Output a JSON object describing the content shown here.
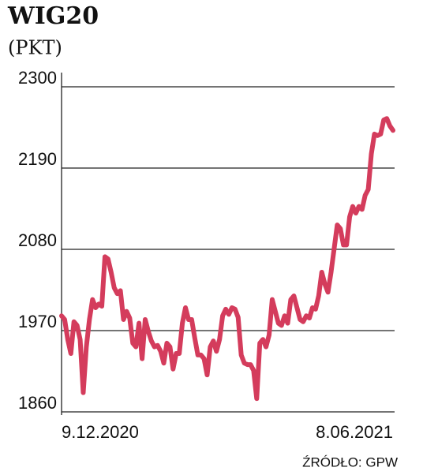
{
  "chart_data": {
    "type": "line",
    "title": "WIG20",
    "subtitle": "(PKT)",
    "source": "ŹRÓDŁO: GPW",
    "categories": [
      "9.12.2020",
      null,
      null,
      null,
      null,
      null,
      null,
      null,
      null,
      null,
      null,
      null,
      null,
      null,
      null,
      null,
      null,
      null,
      null,
      null,
      null,
      null,
      null,
      null,
      null,
      null,
      null,
      null,
      null,
      null,
      null,
      null,
      null,
      null,
      null,
      null,
      null,
      null,
      null,
      null,
      null,
      null,
      null,
      null,
      null,
      null,
      null,
      null,
      null,
      null,
      null,
      null,
      null,
      null,
      null,
      null,
      null,
      null,
      null,
      null,
      null,
      null,
      null,
      null,
      null,
      null,
      null,
      null,
      null,
      null,
      null,
      null,
      null,
      null,
      null,
      null,
      null,
      null,
      null,
      null,
      null,
      null,
      null,
      null,
      null,
      null,
      null,
      null,
      null,
      null,
      null,
      null,
      null,
      null,
      null,
      null,
      null,
      null,
      null,
      null,
      null,
      null,
      null,
      null,
      null,
      null,
      null,
      "8.06.2021"
    ],
    "series": [
      {
        "name": "WIG20",
        "color": "#d43c5c",
        "values": [
          1990,
          1985,
          1958,
          1939,
          1982,
          1977,
          1958,
          1886,
          1948,
          1985,
          2012,
          2001,
          2006,
          2003,
          2070,
          2067,
          2049,
          2028,
          2020,
          2024,
          1985,
          1996,
          1987,
          1953,
          1948,
          1980,
          1932,
          1985,
          1969,
          1956,
          1948,
          1950,
          1942,
          1926,
          1953,
          1948,
          1918,
          1939,
          1939,
          1980,
          2001,
          1985,
          1985,
          1960,
          1937,
          1937,
          1932,
          1910,
          1948,
          1956,
          1942,
          1958,
          1990,
          1999,
          1992,
          2001,
          1999,
          1988,
          1937,
          1926,
          1924,
          1924,
          1916,
          1878,
          1953,
          1958,
          1948,
          1964,
          2012,
          1996,
          1980,
          1977,
          1990,
          1980,
          2012,
          2017,
          2001,
          1985,
          1982,
          1990,
          1987,
          2001,
          1999,
          2017,
          2049,
          2033,
          2022,
          2049,
          2081,
          2113,
          2108,
          2086,
          2086,
          2124,
          2138,
          2129,
          2138,
          2134,
          2153,
          2161,
          2209,
          2236,
          2234,
          2236,
          2255,
          2257,
          2247,
          2241
        ]
      }
    ],
    "ylim": [
      1860,
      2300
    ],
    "yticks": [
      1860,
      1970,
      2080,
      2190,
      2300
    ],
    "grid": true
  }
}
